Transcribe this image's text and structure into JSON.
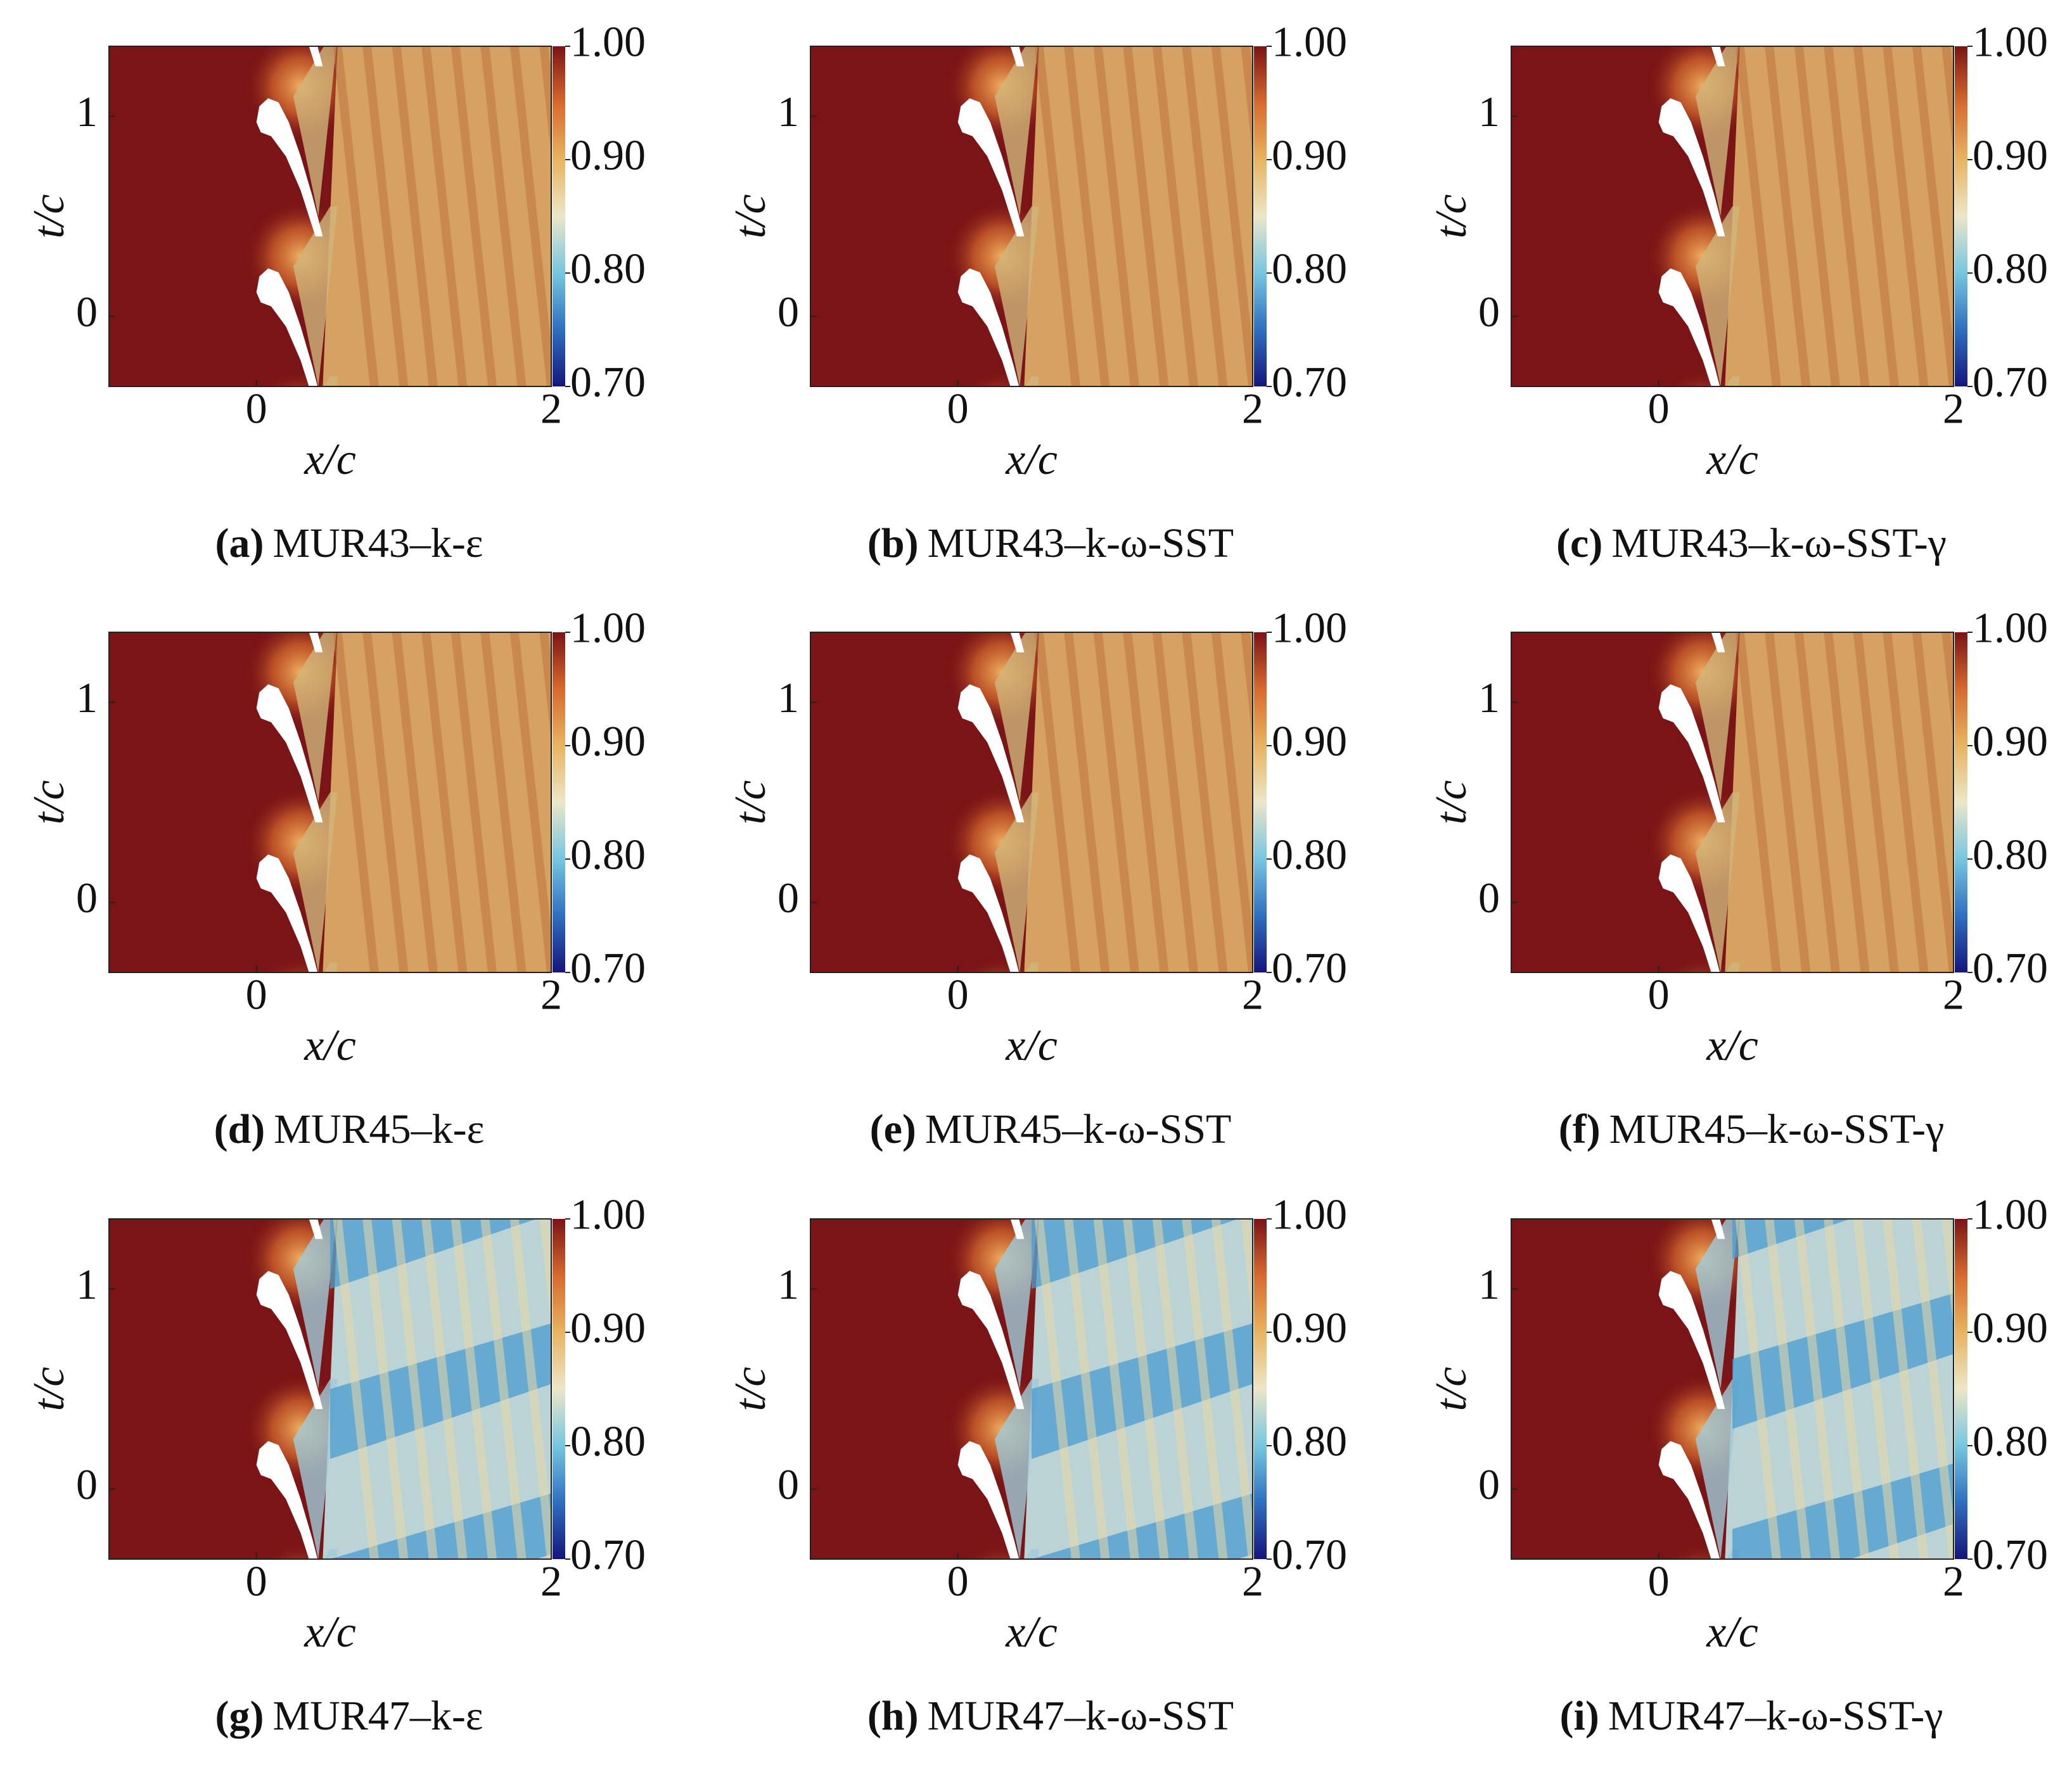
{
  "chart_data": [
    {
      "type": "heatmap",
      "label": "(a)",
      "caption": "MUR43–k-ε",
      "xlabel": "x/c",
      "ylabel": "t/c",
      "xlim": [
        -1,
        2
      ],
      "ylim": [
        -0.35,
        1.35
      ],
      "xticks": [
        0,
        2
      ],
      "yticks": [
        0,
        1
      ],
      "clim": [
        0.7,
        1.0
      ],
      "cticks": [
        {
          "value": 1.0,
          "label": "1.00"
        },
        {
          "value": 0.9,
          "label": "0.90"
        },
        {
          "value": 0.8,
          "label": "0.80"
        },
        {
          "value": 0.7,
          "label": "0.70"
        }
      ],
      "colormap": [
        "#15157c",
        "#2f6fbf",
        "#76c6e0",
        "#ece6c8",
        "#e8b460",
        "#d76a2e",
        "#7a1416"
      ]
    },
    {
      "type": "heatmap",
      "label": "(b)",
      "caption": "MUR43–k-ω-SST",
      "xlabel": "x/c",
      "ylabel": "t/c",
      "xlim": [
        -1,
        2
      ],
      "ylim": [
        -0.35,
        1.35
      ],
      "xticks": [
        0,
        2
      ],
      "yticks": [
        0,
        1
      ],
      "clim": [
        0.7,
        1.0
      ],
      "cticks": [
        {
          "value": 1.0,
          "label": "1.00"
        },
        {
          "value": 0.9,
          "label": "0.90"
        },
        {
          "value": 0.8,
          "label": "0.80"
        },
        {
          "value": 0.7,
          "label": "0.70"
        }
      ],
      "colormap": [
        "#15157c",
        "#2f6fbf",
        "#76c6e0",
        "#ece6c8",
        "#e8b460",
        "#d76a2e",
        "#7a1416"
      ]
    },
    {
      "type": "heatmap",
      "label": "(c)",
      "caption": "MUR43–k-ω-SST-γ",
      "xlabel": "x/c",
      "ylabel": "t/c",
      "xlim": [
        -1,
        2
      ],
      "ylim": [
        -0.35,
        1.35
      ],
      "xticks": [
        0,
        2
      ],
      "yticks": [
        0,
        1
      ],
      "clim": [
        0.7,
        1.0
      ],
      "cticks": [
        {
          "value": 1.0,
          "label": "1.00"
        },
        {
          "value": 0.9,
          "label": "0.90"
        },
        {
          "value": 0.8,
          "label": "0.80"
        },
        {
          "value": 0.7,
          "label": "0.70"
        }
      ],
      "colormap": [
        "#15157c",
        "#2f6fbf",
        "#76c6e0",
        "#ece6c8",
        "#e8b460",
        "#d76a2e",
        "#7a1416"
      ]
    },
    {
      "type": "heatmap",
      "label": "(d)",
      "caption": "MUR45–k-ε",
      "xlabel": "x/c",
      "ylabel": "t/c",
      "xlim": [
        -1,
        2
      ],
      "ylim": [
        -0.35,
        1.35
      ],
      "xticks": [
        0,
        2
      ],
      "yticks": [
        0,
        1
      ],
      "clim": [
        0.7,
        1.0
      ],
      "cticks": [
        {
          "value": 1.0,
          "label": "1.00"
        },
        {
          "value": 0.9,
          "label": "0.90"
        },
        {
          "value": 0.8,
          "label": "0.80"
        },
        {
          "value": 0.7,
          "label": "0.70"
        }
      ],
      "colormap": [
        "#15157c",
        "#2f6fbf",
        "#76c6e0",
        "#ece6c8",
        "#e8b460",
        "#d76a2e",
        "#7a1416"
      ]
    },
    {
      "type": "heatmap",
      "label": "(e)",
      "caption": "MUR45–k-ω-SST",
      "xlabel": "x/c",
      "ylabel": "t/c",
      "xlim": [
        -1,
        2
      ],
      "ylim": [
        -0.35,
        1.35
      ],
      "xticks": [
        0,
        2
      ],
      "yticks": [
        0,
        1
      ],
      "clim": [
        0.7,
        1.0
      ],
      "cticks": [
        {
          "value": 1.0,
          "label": "1.00"
        },
        {
          "value": 0.9,
          "label": "0.90"
        },
        {
          "value": 0.8,
          "label": "0.80"
        },
        {
          "value": 0.7,
          "label": "0.70"
        }
      ],
      "colormap": [
        "#15157c",
        "#2f6fbf",
        "#76c6e0",
        "#ece6c8",
        "#e8b460",
        "#d76a2e",
        "#7a1416"
      ]
    },
    {
      "type": "heatmap",
      "label": "(f)",
      "caption": "MUR45–k-ω-SST-γ",
      "xlabel": "x/c",
      "ylabel": "t/c",
      "xlim": [
        -1,
        2
      ],
      "ylim": [
        -0.35,
        1.35
      ],
      "xticks": [
        0,
        2
      ],
      "yticks": [
        0,
        1
      ],
      "clim": [
        0.7,
        1.0
      ],
      "cticks": [
        {
          "value": 1.0,
          "label": "1.00"
        },
        {
          "value": 0.9,
          "label": "0.90"
        },
        {
          "value": 0.8,
          "label": "0.80"
        },
        {
          "value": 0.7,
          "label": "0.70"
        }
      ],
      "colormap": [
        "#15157c",
        "#2f6fbf",
        "#76c6e0",
        "#ece6c8",
        "#e8b460",
        "#d76a2e",
        "#7a1416"
      ]
    },
    {
      "type": "heatmap",
      "label": "(g)",
      "caption": "MUR47–k-ε",
      "xlabel": "x/c",
      "ylabel": "t/c",
      "xlim": [
        -1,
        2
      ],
      "ylim": [
        -0.35,
        1.35
      ],
      "xticks": [
        0,
        2
      ],
      "yticks": [
        0,
        1
      ],
      "clim": [
        0.7,
        1.0
      ],
      "cticks": [
        {
          "value": 1.0,
          "label": "1.00"
        },
        {
          "value": 0.9,
          "label": "0.90"
        },
        {
          "value": 0.8,
          "label": "0.80"
        },
        {
          "value": 0.7,
          "label": "0.70"
        }
      ],
      "colormap": [
        "#15157c",
        "#2f6fbf",
        "#76c6e0",
        "#ece6c8",
        "#e8b460",
        "#d76a2e",
        "#7a1416"
      ]
    },
    {
      "type": "heatmap",
      "label": "(h)",
      "caption": "MUR47–k-ω-SST",
      "xlabel": "x/c",
      "ylabel": "t/c",
      "xlim": [
        -1,
        2
      ],
      "ylim": [
        -0.35,
        1.35
      ],
      "xticks": [
        0,
        2
      ],
      "yticks": [
        0,
        1
      ],
      "clim": [
        0.7,
        1.0
      ],
      "cticks": [
        {
          "value": 1.0,
          "label": "1.00"
        },
        {
          "value": 0.9,
          "label": "0.90"
        },
        {
          "value": 0.8,
          "label": "0.80"
        },
        {
          "value": 0.7,
          "label": "0.70"
        }
      ],
      "colormap": [
        "#15157c",
        "#2f6fbf",
        "#76c6e0",
        "#ece6c8",
        "#e8b460",
        "#d76a2e",
        "#7a1416"
      ]
    },
    {
      "type": "heatmap",
      "label": "(i)",
      "caption": "MUR47–k-ω-SST-γ",
      "xlabel": "x/c",
      "ylabel": "t/c",
      "xlim": [
        -1,
        2
      ],
      "ylim": [
        -0.35,
        1.35
      ],
      "xticks": [
        0,
        2
      ],
      "yticks": [
        0,
        1
      ],
      "clim": [
        0.7,
        1.0
      ],
      "cticks": [
        {
          "value": 1.0,
          "label": "1.00"
        },
        {
          "value": 0.9,
          "label": "0.90"
        },
        {
          "value": 0.8,
          "label": "0.80"
        },
        {
          "value": 0.7,
          "label": "0.70"
        }
      ],
      "colormap": [
        "#15157c",
        "#2f6fbf",
        "#76c6e0",
        "#ece6c8",
        "#e8b460",
        "#d76a2e",
        "#7a1416"
      ]
    }
  ]
}
